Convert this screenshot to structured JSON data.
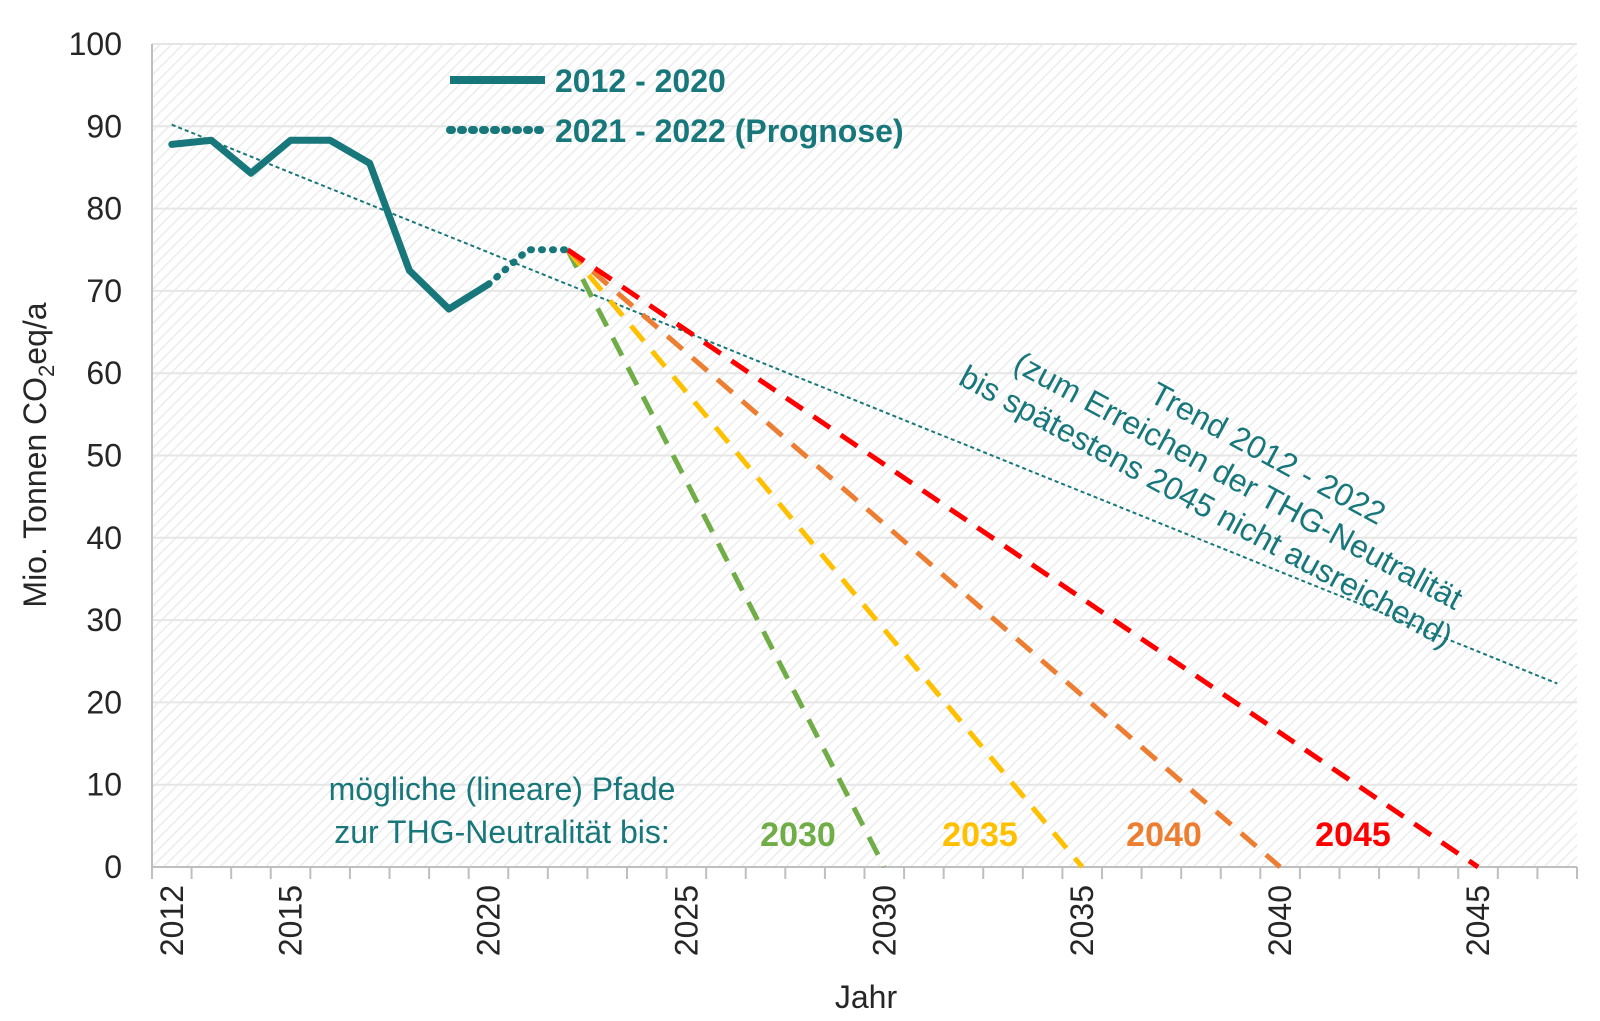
{
  "chart_data": {
    "type": "line",
    "xlabel": "Jahr",
    "ylabel_main": "Mio. Tonnen CO",
    "ylabel_sub": "2",
    "ylabel_end": "eq/a",
    "xlim": [
      2011.5,
      2047.5
    ],
    "ylim": [
      0,
      100
    ],
    "yticks": [
      0,
      10,
      20,
      30,
      40,
      50,
      60,
      70,
      80,
      90,
      100
    ],
    "xticks": [
      2012,
      2015,
      2020,
      2025,
      2030,
      2035,
      2040,
      2045
    ],
    "grid": true,
    "legend_position": "top-left",
    "colors": {
      "history": "#17777a",
      "trend": "#17777a",
      "p2030": "#70ad47",
      "p2035": "#ffc000",
      "p2040": "#ed7d31",
      "p2045": "#ff0000",
      "text": "#262626",
      "grid": "#e6e6e6"
    },
    "series": [
      {
        "name": "2012 - 2020",
        "style": "solid",
        "x": [
          2012,
          2013,
          2014,
          2015,
          2016,
          2017,
          2018,
          2019,
          2020
        ],
        "y": [
          87.8,
          88.3,
          84.3,
          88.3,
          88.3,
          85.5,
          72.5,
          67.8,
          70.8
        ]
      },
      {
        "name": "2021 - 2022 (Prognose)",
        "style": "dotted",
        "x": [
          2020,
          2021,
          2022
        ],
        "y": [
          70.8,
          75.0,
          75.0
        ]
      }
    ],
    "trend": {
      "x": [
        2012,
        2047
      ],
      "y": [
        90.2,
        22.3
      ],
      "label_lines": [
        "Trend 2012 - 2022",
        "(zum Erreichen der THG-Neutralität",
        "bis spätestens 2045 nicht ausreichend)"
      ]
    },
    "paths": [
      {
        "label": "2030",
        "color_key": "p2030",
        "x": [
          2022,
          2030
        ],
        "y": [
          75.0,
          0
        ]
      },
      {
        "label": "2035",
        "color_key": "p2035",
        "x": [
          2022,
          2035
        ],
        "y": [
          75.0,
          0
        ]
      },
      {
        "label": "2040",
        "color_key": "p2040",
        "x": [
          2022,
          2040
        ],
        "y": [
          75.0,
          0
        ]
      },
      {
        "label": "2045",
        "color_key": "p2045",
        "x": [
          2022,
          2045
        ],
        "y": [
          75.0,
          0
        ]
      }
    ],
    "paths_caption": [
      "mögliche (lineare) Pfade",
      "zur THG-Neutralität bis:"
    ]
  }
}
